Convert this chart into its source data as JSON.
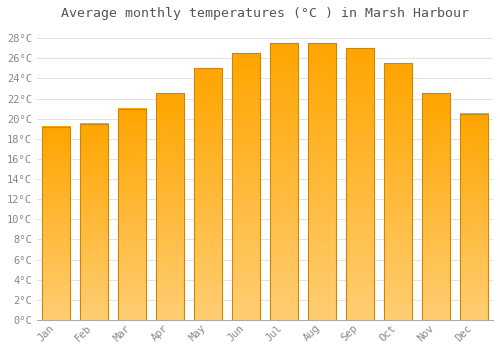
{
  "title": "Average monthly temperatures (°C ) in Marsh Harbour",
  "months": [
    "Jan",
    "Feb",
    "Mar",
    "Apr",
    "May",
    "Jun",
    "Jul",
    "Aug",
    "Sep",
    "Oct",
    "Nov",
    "Dec"
  ],
  "values": [
    19.2,
    19.5,
    21.0,
    22.5,
    25.0,
    26.5,
    27.5,
    27.5,
    27.0,
    25.5,
    22.5,
    20.5
  ],
  "bar_color": "#FFA500",
  "bar_edge_color": "#CC8800",
  "background_color": "#FFFFFF",
  "grid_color": "#DDDDDD",
  "title_fontsize": 9.5,
  "tick_fontsize": 7.5,
  "ylim": [
    0,
    29
  ],
  "ytick_step": 2
}
